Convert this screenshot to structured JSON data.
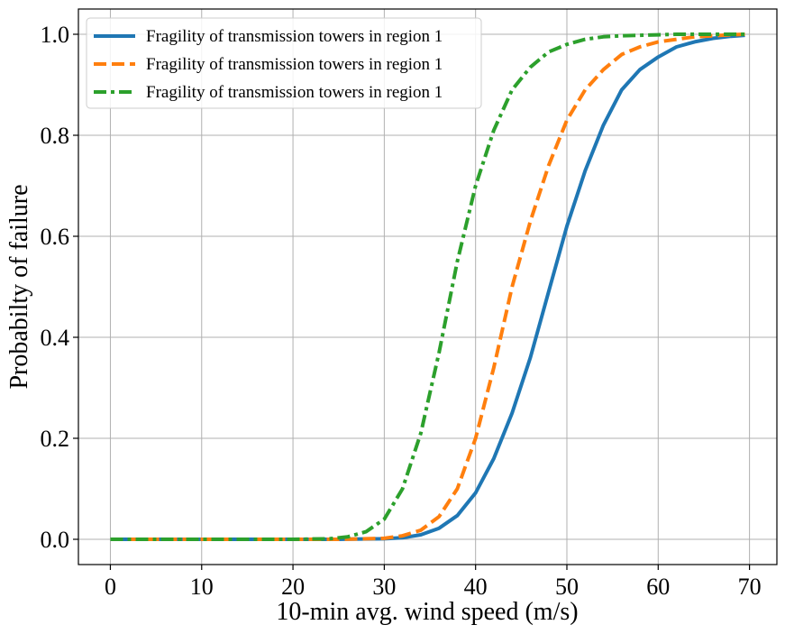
{
  "chart_data": {
    "type": "line",
    "title": "",
    "xlabel": "10-min avg. wind speed (m/s)",
    "ylabel": "Probabilty of failure",
    "xlim": [
      -3.5,
      73
    ],
    "ylim": [
      -0.05,
      1.05
    ],
    "xticks": [
      0,
      10,
      20,
      30,
      40,
      50,
      60,
      70
    ],
    "yticks": [
      0.0,
      0.2,
      0.4,
      0.6,
      0.8,
      1.0
    ],
    "xtick_labels": [
      "0",
      "10",
      "20",
      "30",
      "40",
      "50",
      "60",
      "70"
    ],
    "ytick_labels": [
      "0.0",
      "0.2",
      "0.4",
      "0.6",
      "0.8",
      "1.0"
    ],
    "grid": true,
    "legend_position": "top-left",
    "series": [
      {
        "name": "Fragility of transmission towers in region 1",
        "color": "#1f77b4",
        "style": "solid",
        "x": [
          0,
          10,
          20,
          25,
          30,
          32,
          34,
          36,
          38,
          40,
          42,
          44,
          46,
          48,
          50,
          52,
          54,
          56,
          58,
          60,
          62,
          64,
          66,
          68,
          69.5
        ],
        "y": [
          0,
          0,
          0,
          0,
          0.001,
          0.003,
          0.009,
          0.022,
          0.047,
          0.092,
          0.16,
          0.25,
          0.36,
          0.49,
          0.62,
          0.73,
          0.82,
          0.89,
          0.93,
          0.955,
          0.975,
          0.985,
          0.992,
          0.996,
          0.998
        ]
      },
      {
        "name": "Fragility of transmission towers in region 1",
        "color": "#ff7f0e",
        "style": "dashed",
        "x": [
          0,
          10,
          20,
          25,
          28,
          30,
          32,
          34,
          36,
          38,
          40,
          42,
          44,
          46,
          48,
          50,
          52,
          54,
          56,
          58,
          60,
          62,
          64,
          66,
          68,
          69.5
        ],
        "y": [
          0,
          0,
          0,
          0,
          0.001,
          0.002,
          0.007,
          0.018,
          0.045,
          0.1,
          0.2,
          0.34,
          0.5,
          0.63,
          0.74,
          0.83,
          0.89,
          0.93,
          0.96,
          0.975,
          0.985,
          0.99,
          0.995,
          0.997,
          0.999,
          1.0
        ]
      },
      {
        "name": "Fragility of transmission towers in region 1",
        "color": "#2ca02c",
        "style": "dashdot",
        "x": [
          0,
          10,
          20,
          24,
          26,
          28,
          30,
          32,
          34,
          36,
          38,
          40,
          42,
          44,
          46,
          48,
          50,
          52,
          54,
          56,
          58,
          60,
          62,
          64,
          66,
          68,
          69.5
        ],
        "y": [
          0,
          0,
          0,
          0.001,
          0.005,
          0.015,
          0.04,
          0.1,
          0.21,
          0.37,
          0.55,
          0.7,
          0.81,
          0.89,
          0.935,
          0.965,
          0.98,
          0.99,
          0.995,
          0.997,
          0.998,
          0.999,
          1.0,
          1.0,
          1.0,
          1.0,
          1.0
        ]
      }
    ]
  }
}
